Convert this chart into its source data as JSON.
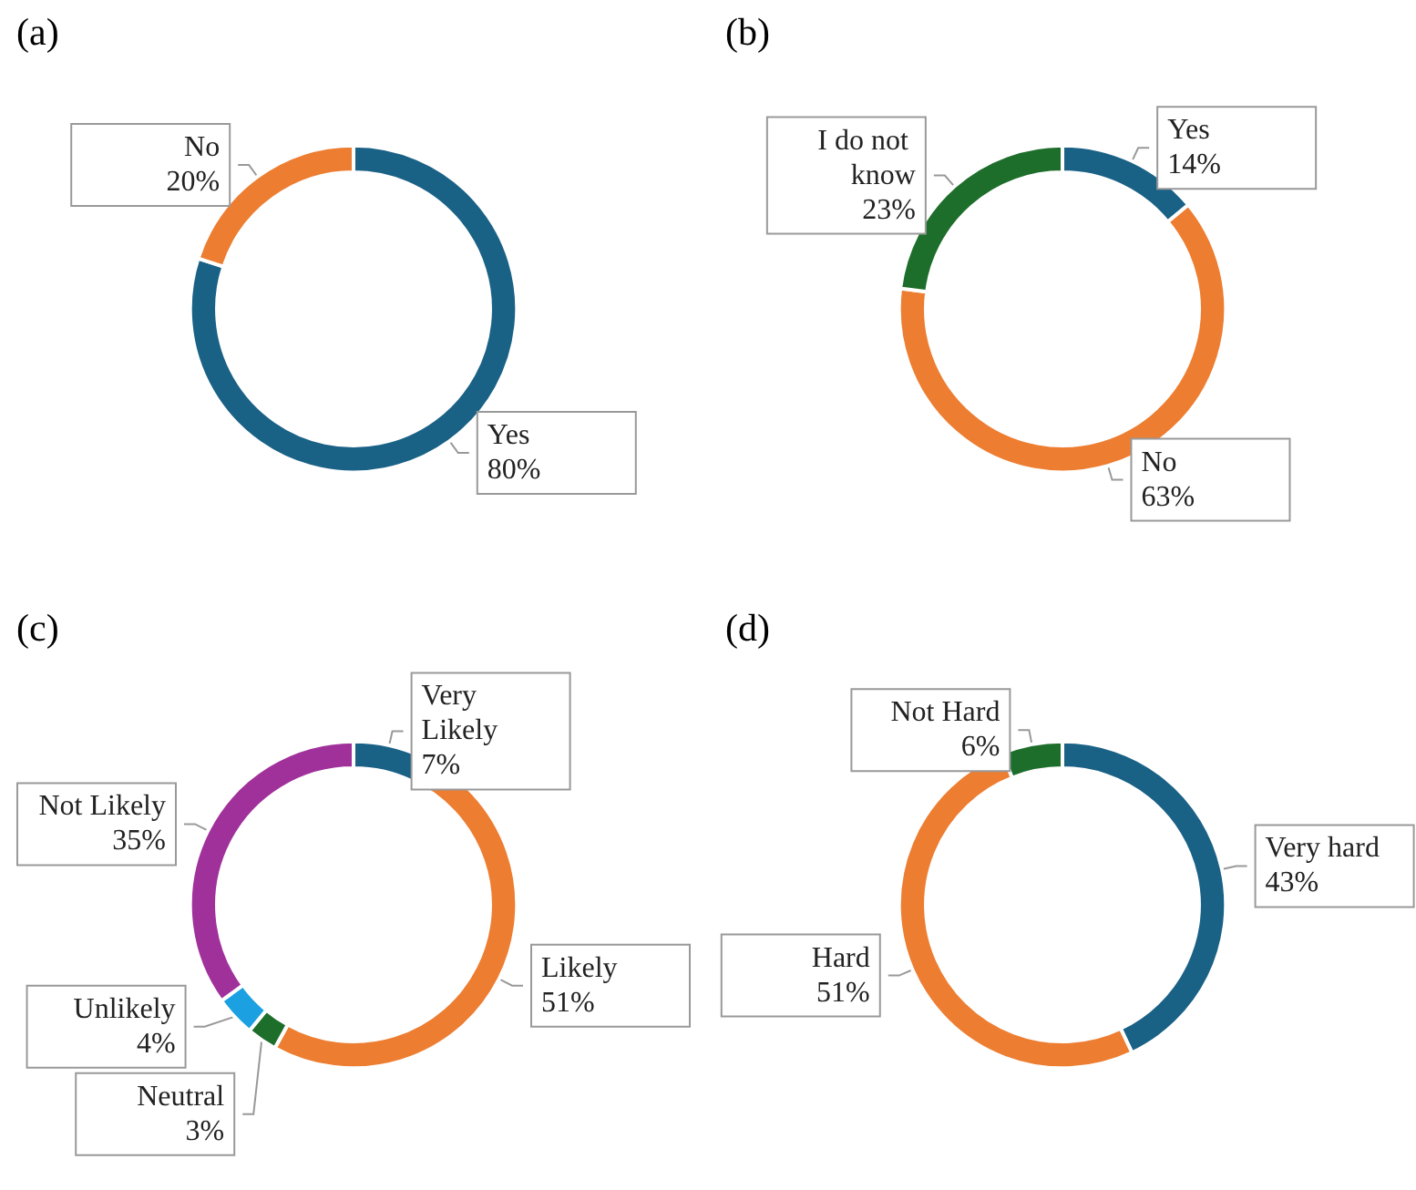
{
  "chart_data": [
    {
      "type": "donut",
      "title": "(a)",
      "categories": [
        "Yes",
        "No"
      ],
      "values": [
        80,
        20
      ],
      "value_labels": [
        "80%",
        "20%"
      ],
      "colors": [
        "#1a6186",
        "#ed7d31"
      ],
      "legend": false
    },
    {
      "type": "donut",
      "title": "(b)",
      "categories": [
        "Yes",
        "No",
        "I do not know"
      ],
      "values": [
        14,
        63,
        23
      ],
      "value_labels": [
        "14%",
        "63%",
        "23%"
      ],
      "colors": [
        "#1a6186",
        "#ed7d31",
        "#1e6e2b"
      ],
      "legend": false
    },
    {
      "type": "donut",
      "title": "(c)",
      "categories": [
        "Very Likely",
        "Likely",
        "Neutral",
        "Unlikely",
        "Not Likely"
      ],
      "values": [
        7,
        51,
        3,
        4,
        35
      ],
      "value_labels": [
        "7%",
        "51%",
        "3%",
        "4%",
        "35%"
      ],
      "colors": [
        "#1a6186",
        "#ed7d31",
        "#1e6e2b",
        "#1ba1e2",
        "#a0319b"
      ],
      "legend": false
    },
    {
      "type": "donut",
      "title": "(d)",
      "categories": [
        "Very hard",
        "Hard",
        "Not Hard"
      ],
      "values": [
        43,
        51,
        6
      ],
      "value_labels": [
        "43%",
        "51%",
        "6%"
      ],
      "colors": [
        "#1a6186",
        "#ed7d31",
        "#1e6e2b"
      ],
      "legend": false
    }
  ]
}
